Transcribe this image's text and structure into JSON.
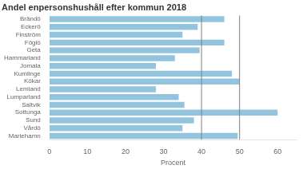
{
  "chart_data": {
    "type": "bar",
    "orientation": "horizontal",
    "title": "Andel enpersonshushåll efter kommun 2018",
    "categories": [
      "Brändö",
      "Eckerö",
      "Finström",
      "Föglö",
      "Geta",
      "Hammarland",
      "Jomala",
      "Kumlinge",
      "Kökar",
      "Lemland",
      "Lumparland",
      "Saltvik",
      "Sottunga",
      "Sund",
      "Vårdö",
      "Mariehamn"
    ],
    "values": [
      46,
      39,
      35,
      46,
      39.5,
      33,
      28,
      48,
      50,
      28,
      34,
      35.5,
      60,
      38,
      35,
      49.5
    ],
    "color": "#93c4de",
    "x_label": "Procent",
    "xlim": [
      0,
      65
    ],
    "xticks": [
      0,
      10,
      20,
      30,
      40,
      50,
      60
    ],
    "vlines": [
      {
        "value": 40,
        "color": "#808080"
      },
      {
        "value": 50,
        "color": "#808080"
      }
    ],
    "grid": false
  }
}
